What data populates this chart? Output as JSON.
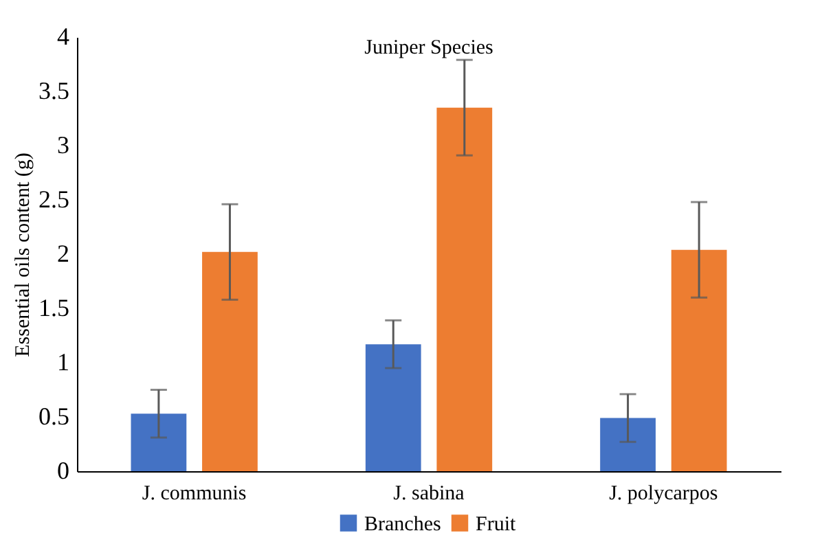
{
  "chart_data": {
    "type": "bar",
    "title": "Juniper Species",
    "ylabel": "Essential oils content (g)",
    "categories": [
      "J. communis",
      "J. sabina",
      "J. polycarpos"
    ],
    "series": [
      {
        "name": "Branches",
        "color": "#4472c4",
        "values": [
          0.53,
          1.17,
          0.49
        ],
        "errors": [
          0.22,
          0.22,
          0.22
        ]
      },
      {
        "name": "Fruit",
        "color": "#ed7d31",
        "values": [
          2.02,
          3.35,
          2.04
        ],
        "errors": [
          0.44,
          0.44,
          0.44
        ]
      }
    ],
    "ylim": [
      0,
      4
    ],
    "yticks": [
      0,
      0.5,
      1,
      1.5,
      2,
      2.5,
      3,
      3.5,
      4
    ],
    "grid": false,
    "legend": "bottom"
  }
}
